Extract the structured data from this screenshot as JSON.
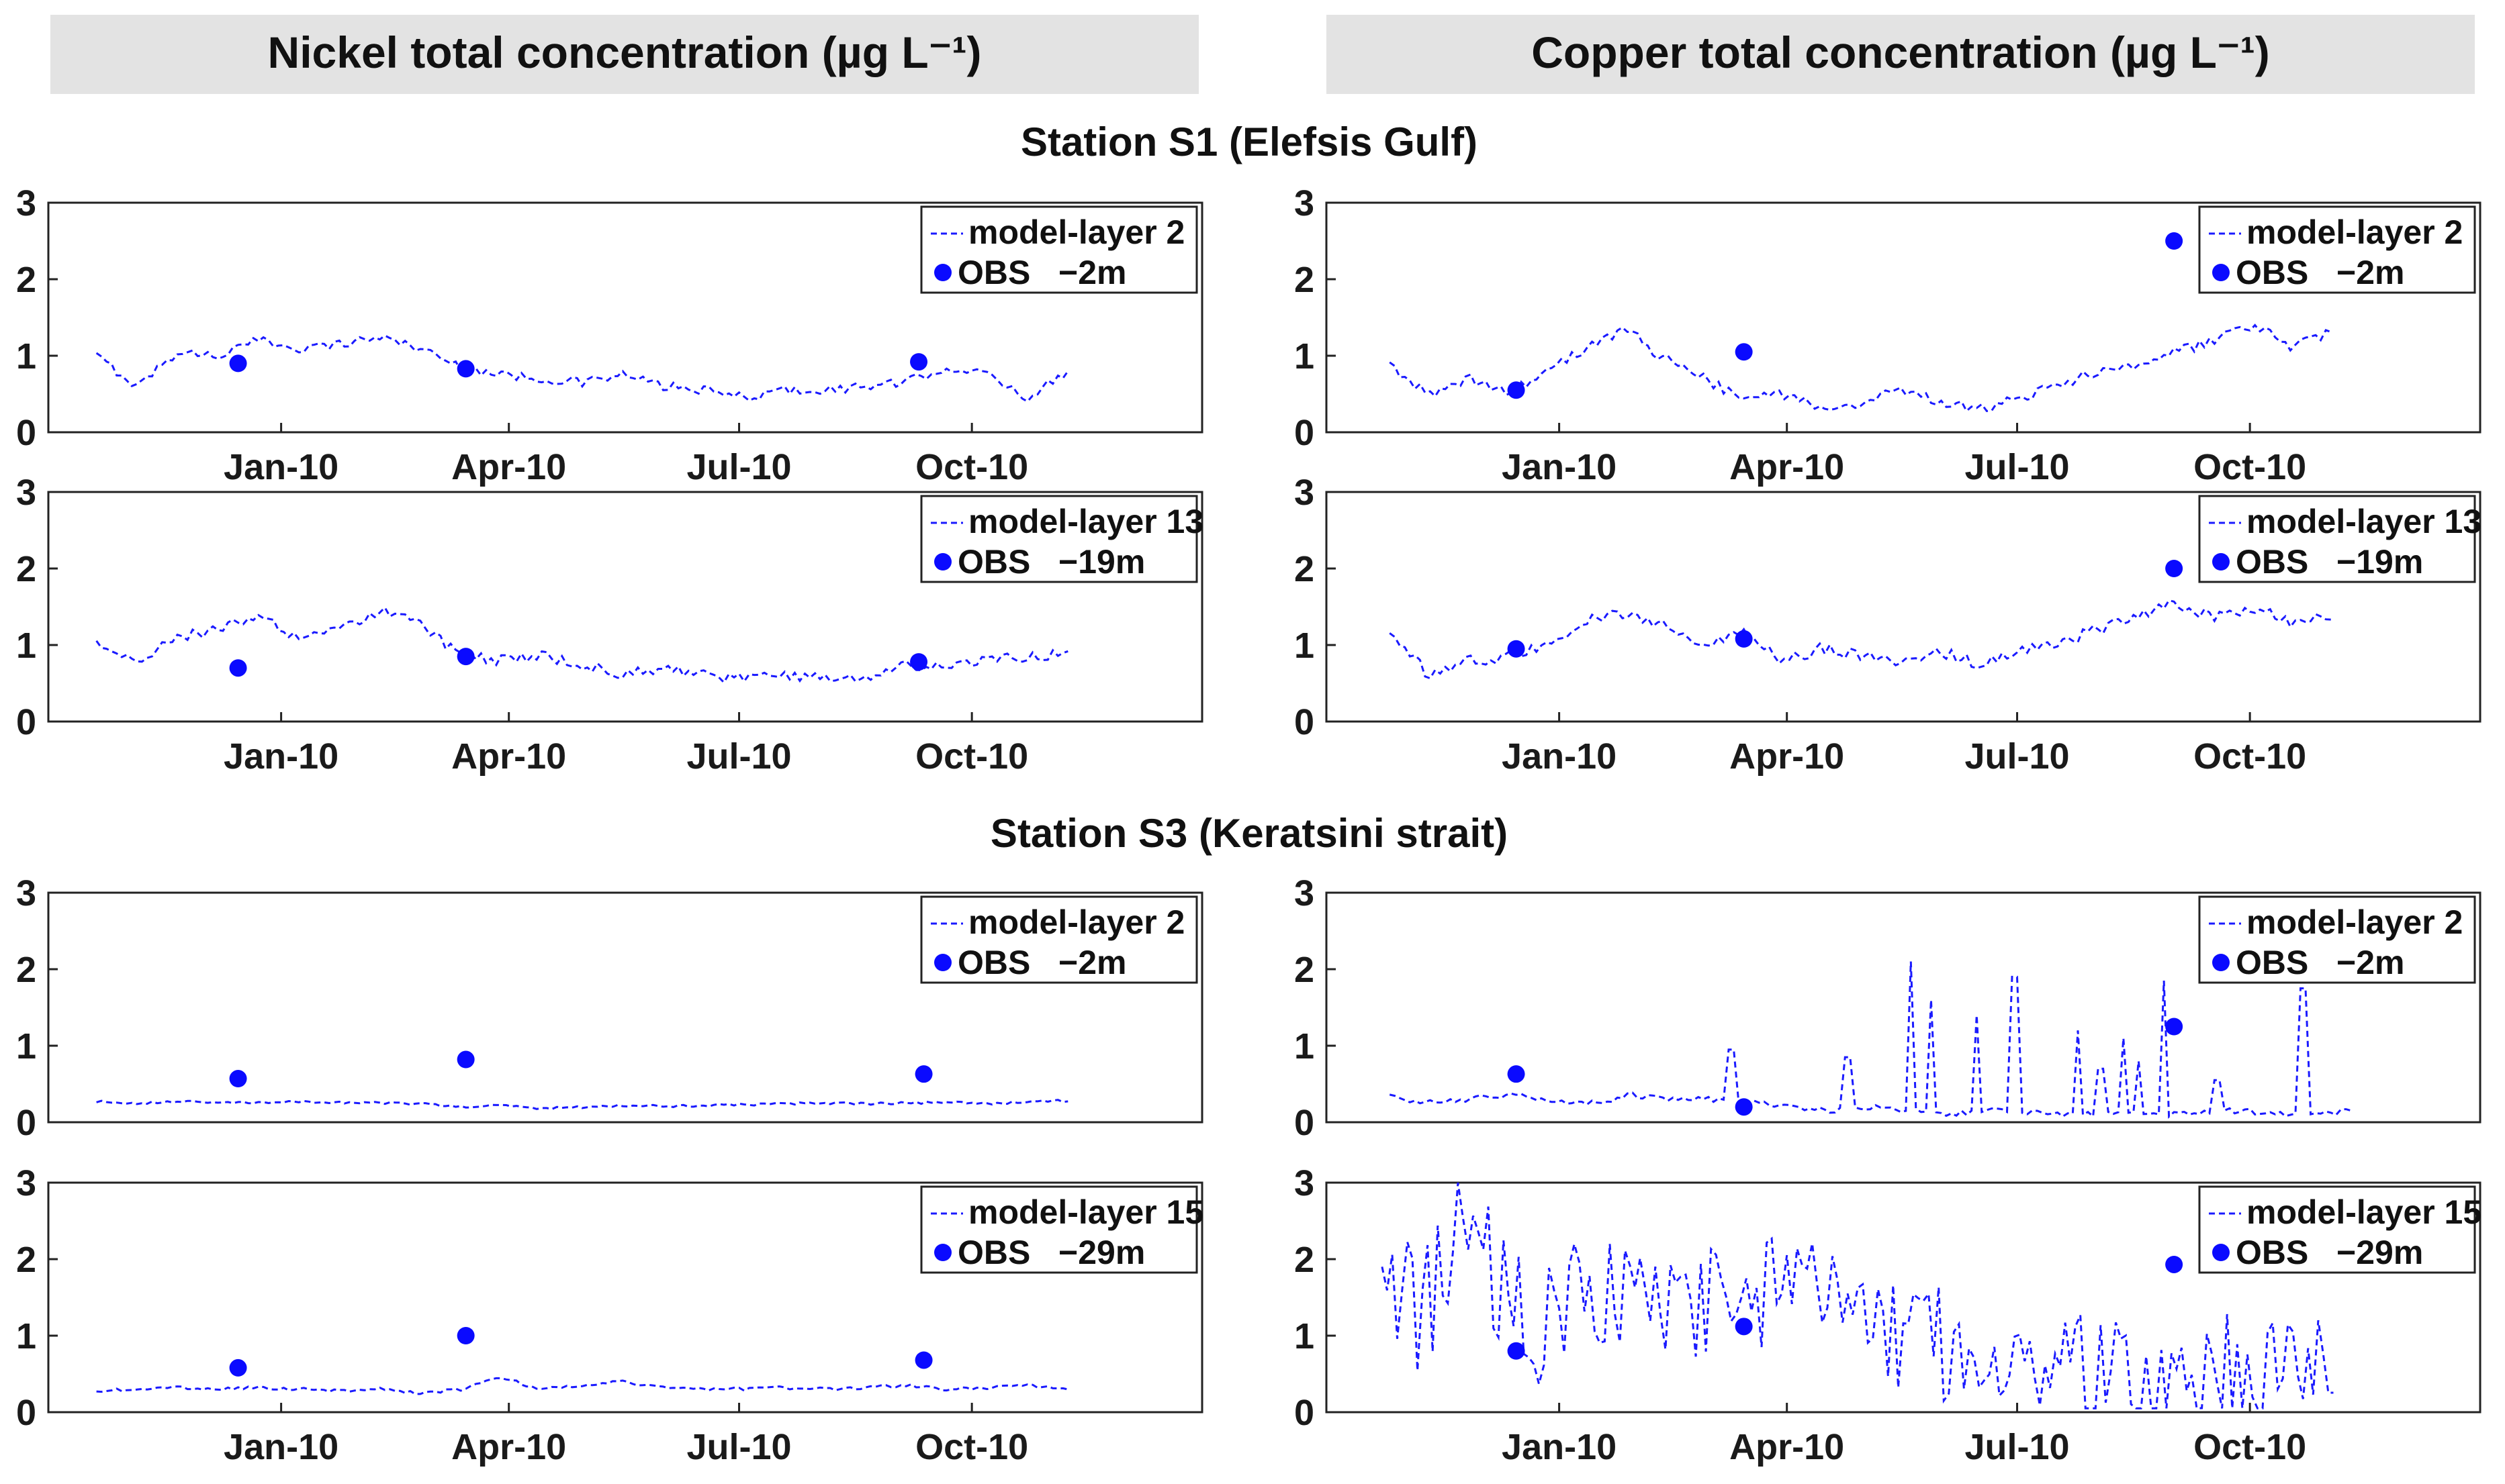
{
  "headers": {
    "nickel": "Nickel total concentration (µg L⁻¹)",
    "copper": "Copper total concentration (µg L⁻¹)"
  },
  "stations": {
    "s1": "Station S1 (Elefsis Gulf)",
    "s3": "Station S3 (Keratsini strait)"
  },
  "colors": {
    "series": "#1a1aff",
    "obs": "#0a0aff"
  },
  "chart_data": [
    {
      "id": "ni-s1-l2",
      "type": "line",
      "metal": "Nickel",
      "station": "S1",
      "ylim": [
        0,
        3
      ],
      "yticks": [
        "0",
        "1",
        "2",
        "3"
      ],
      "xlim": [
        "2009-10-01",
        "2010-12-31"
      ],
      "xticks": [
        {
          "label": "Jan-10",
          "date": "2010-01-01"
        },
        {
          "label": "Apr-10",
          "date": "2010-04-01"
        },
        {
          "label": "Jul-10",
          "date": "2010-07-01"
        },
        {
          "label": "Oct-10",
          "date": "2010-10-01"
        }
      ],
      "legend": {
        "model": "model-layer 2",
        "obs": "OBS   −2m",
        "position": "top-right"
      },
      "model": {
        "start": "2009-10-20",
        "end": "2010-11-08",
        "knots": [
          1.0,
          0.6,
          1.05,
          1.0,
          1.2,
          1.1,
          1.15,
          1.25,
          1.1,
          0.85,
          0.75,
          0.7,
          0.65,
          0.75,
          0.6,
          0.55,
          0.45,
          0.55,
          0.55,
          0.6,
          0.65,
          0.85,
          0.75,
          0.45,
          0.8
        ],
        "noise": 0.06
      },
      "obs": [
        {
          "date": "2009-12-15",
          "value": 0.9
        },
        {
          "date": "2010-03-15",
          "value": 0.83
        },
        {
          "date": "2010-09-10",
          "value": 0.92
        }
      ]
    },
    {
      "id": "ni-s1-l13",
      "type": "line",
      "metal": "Nickel",
      "station": "S1",
      "ylim": [
        0,
        3
      ],
      "yticks": [
        "0",
        "1",
        "2",
        "3"
      ],
      "xlim": [
        "2009-10-01",
        "2010-12-31"
      ],
      "xticks": [
        {
          "label": "Jan-10",
          "date": "2010-01-01"
        },
        {
          "label": "Apr-10",
          "date": "2010-04-01"
        },
        {
          "label": "Jul-10",
          "date": "2010-07-01"
        },
        {
          "label": "Oct-10",
          "date": "2010-10-01"
        }
      ],
      "legend": {
        "model": "model-layer 13",
        "obs": "OBS   −19m",
        "position": "top-right"
      },
      "model": {
        "start": "2009-10-20",
        "end": "2010-11-08",
        "knots": [
          1.0,
          0.8,
          1.1,
          1.2,
          1.4,
          1.05,
          1.2,
          1.45,
          1.3,
          0.85,
          0.8,
          0.85,
          0.75,
          0.6,
          0.7,
          0.6,
          0.55,
          0.6,
          0.6,
          0.55,
          0.75,
          0.7,
          0.8,
          0.85,
          0.9
        ],
        "noise": 0.07
      },
      "obs": [
        {
          "date": "2009-12-15",
          "value": 0.7
        },
        {
          "date": "2010-03-15",
          "value": 0.85
        },
        {
          "date": "2010-09-10",
          "value": 0.78
        }
      ]
    },
    {
      "id": "cu-s1-l2",
      "type": "line",
      "metal": "Copper",
      "station": "S1",
      "ylim": [
        0,
        3
      ],
      "yticks": [
        "0",
        "1",
        "2",
        "3"
      ],
      "xlim": [
        "2009-10-01",
        "2010-12-31"
      ],
      "xticks": [
        {
          "label": "Jan-10",
          "date": "2010-01-01"
        },
        {
          "label": "Apr-10",
          "date": "2010-04-01"
        },
        {
          "label": "Jul-10",
          "date": "2010-07-01"
        },
        {
          "label": "Oct-10",
          "date": "2010-10-01"
        }
      ],
      "legend": {
        "model": "model-layer 2",
        "obs": "OBS   −2m",
        "position": "top-right"
      },
      "model": {
        "start": "2009-10-26",
        "end": "2010-11-03",
        "knots": [
          0.85,
          0.5,
          0.7,
          0.5,
          0.8,
          1.1,
          1.35,
          0.95,
          0.7,
          0.4,
          0.5,
          0.3,
          0.4,
          0.55,
          0.4,
          0.3,
          0.45,
          0.6,
          0.8,
          0.9,
          1.05,
          1.2,
          1.4,
          1.1,
          1.35
        ],
        "noise": 0.07
      },
      "obs": [
        {
          "date": "2009-12-15",
          "value": 0.55
        },
        {
          "date": "2010-03-15",
          "value": 1.05
        },
        {
          "date": "2010-09-01",
          "value": 2.5
        }
      ]
    },
    {
      "id": "cu-s1-l13",
      "type": "line",
      "metal": "Copper",
      "station": "S1",
      "ylim": [
        0,
        3
      ],
      "yticks": [
        "0",
        "1",
        "2",
        "3"
      ],
      "xlim": [
        "2009-10-01",
        "2010-12-31"
      ],
      "xticks": [
        {
          "label": "Jan-10",
          "date": "2010-01-01"
        },
        {
          "label": "Apr-10",
          "date": "2010-04-01"
        },
        {
          "label": "Jul-10",
          "date": "2010-07-01"
        },
        {
          "label": "Oct-10",
          "date": "2010-10-01"
        }
      ],
      "legend": {
        "model": "model-layer 13",
        "obs": "OBS   −19m",
        "position": "top-right"
      },
      "model": {
        "start": "2009-10-26",
        "end": "2010-11-03",
        "knots": [
          1.2,
          0.6,
          0.8,
          0.85,
          1.0,
          1.35,
          1.4,
          1.25,
          1.0,
          1.15,
          0.8,
          0.95,
          0.85,
          0.8,
          0.9,
          0.75,
          0.95,
          1.0,
          1.2,
          1.35,
          1.55,
          1.35,
          1.45,
          1.3,
          1.4
        ],
        "noise": 0.08
      },
      "obs": [
        {
          "date": "2009-12-15",
          "value": 0.95
        },
        {
          "date": "2010-03-15",
          "value": 1.08
        },
        {
          "date": "2010-09-01",
          "value": 2.0
        }
      ]
    },
    {
      "id": "ni-s3-l2",
      "type": "line",
      "metal": "Nickel",
      "station": "S3",
      "ylim": [
        0,
        3
      ],
      "yticks": [
        "0",
        "1",
        "2",
        "3"
      ],
      "xlim": [
        "2009-10-01",
        "2010-12-31"
      ],
      "xticks": [],
      "legend": {
        "model": "model-layer 2",
        "obs": "OBS   −2m",
        "position": "top-right"
      },
      "model": {
        "start": "2009-10-20",
        "end": "2010-11-08",
        "knots": [
          0.27,
          0.25,
          0.27,
          0.26,
          0.25,
          0.27,
          0.26,
          0.25,
          0.24,
          0.2,
          0.22,
          0.18,
          0.2,
          0.22,
          0.21,
          0.22,
          0.23,
          0.24,
          0.25,
          0.24,
          0.25,
          0.26,
          0.24,
          0.27,
          0.28
        ],
        "noise": 0.015
      },
      "obs": [
        {
          "date": "2009-12-15",
          "value": 0.57
        },
        {
          "date": "2010-03-15",
          "value": 0.82
        },
        {
          "date": "2010-09-12",
          "value": 0.63
        }
      ]
    },
    {
      "id": "ni-s3-l15",
      "type": "line",
      "metal": "Nickel",
      "station": "S3",
      "ylim": [
        0,
        3
      ],
      "yticks": [
        "0",
        "1",
        "2",
        "3"
      ],
      "xlim": [
        "2009-10-01",
        "2010-12-31"
      ],
      "xticks": [
        {
          "label": "Jan-10",
          "date": "2010-01-01"
        },
        {
          "label": "Apr-10",
          "date": "2010-04-01"
        },
        {
          "label": "Jul-10",
          "date": "2010-07-01"
        },
        {
          "label": "Oct-10",
          "date": "2010-10-01"
        }
      ],
      "legend": {
        "model": "model-layer 15",
        "obs": "OBS   −29m",
        "position": "top-right"
      },
      "model": {
        "start": "2009-10-20",
        "end": "2010-11-08",
        "knots": [
          0.28,
          0.3,
          0.32,
          0.3,
          0.32,
          0.3,
          0.28,
          0.3,
          0.25,
          0.3,
          0.45,
          0.3,
          0.35,
          0.4,
          0.32,
          0.3,
          0.3,
          0.32,
          0.3,
          0.32,
          0.35,
          0.3,
          0.32,
          0.35,
          0.3
        ],
        "noise": 0.02
      },
      "obs": [
        {
          "date": "2009-12-15",
          "value": 0.58
        },
        {
          "date": "2010-03-15",
          "value": 1.0
        },
        {
          "date": "2010-09-12",
          "value": 0.68
        }
      ]
    },
    {
      "id": "cu-s3-l2",
      "type": "line",
      "metal": "Copper",
      "station": "S3",
      "ylim": [
        0,
        3
      ],
      "yticks": [
        "0",
        "1",
        "2",
        "3"
      ],
      "xlim": [
        "2009-10-01",
        "2010-12-31"
      ],
      "xticks": [],
      "legend": {
        "model": "model-layer 2",
        "obs": "OBS   −2m",
        "position": "top-right"
      },
      "model": {
        "start": "2009-10-26",
        "end": "2010-11-10",
        "knots": [
          0.35,
          0.25,
          0.3,
          0.35,
          0.3,
          0.25,
          0.35,
          0.3,
          0.3,
          0.25,
          0.2,
          0.15,
          0.2,
          0.15,
          0.12,
          0.15,
          0.12,
          0.1,
          0.12,
          0.1,
          0.12,
          0.15,
          0.12,
          0.1,
          0.15
        ],
        "noise": 0.04,
        "spikes": [
          {
            "date": "2010-03-10",
            "value": 0.95
          },
          {
            "date": "2010-04-25",
            "value": 0.85
          },
          {
            "date": "2010-05-20",
            "value": 2.1
          },
          {
            "date": "2010-05-28",
            "value": 1.6
          },
          {
            "date": "2010-06-15",
            "value": 1.4
          },
          {
            "date": "2010-06-30",
            "value": 1.9
          },
          {
            "date": "2010-07-25",
            "value": 1.2
          },
          {
            "date": "2010-08-03",
            "value": 0.7
          },
          {
            "date": "2010-08-12",
            "value": 1.1
          },
          {
            "date": "2010-08-18",
            "value": 0.8
          },
          {
            "date": "2010-08-28",
            "value": 1.85
          },
          {
            "date": "2010-09-18",
            "value": 0.55
          },
          {
            "date": "2010-10-22",
            "value": 1.75
          }
        ]
      },
      "obs": [
        {
          "date": "2009-12-15",
          "value": 0.63
        },
        {
          "date": "2010-03-15",
          "value": 0.2
        },
        {
          "date": "2010-09-01",
          "value": 1.25
        }
      ]
    },
    {
      "id": "cu-s3-l15",
      "type": "line",
      "metal": "Copper",
      "station": "S3",
      "ylim": [
        0,
        3
      ],
      "yticks": [
        "0",
        "1",
        "2",
        "3"
      ],
      "xlim": [
        "2009-10-01",
        "2010-12-31"
      ],
      "xticks": [
        {
          "label": "Jan-10",
          "date": "2010-01-01"
        },
        {
          "label": "Apr-10",
          "date": "2010-04-01"
        },
        {
          "label": "Jul-10",
          "date": "2010-07-01"
        },
        {
          "label": "Oct-10",
          "date": "2010-10-01"
        }
      ],
      "legend": {
        "model": "model-layer 15",
        "obs": "OBS   −29m",
        "position": "top-right"
      },
      "model": {
        "start": "2009-10-23",
        "end": "2010-11-03",
        "knots": [
          2.0,
          1.2,
          2.5,
          1.6,
          1.0,
          1.8,
          1.4,
          1.6,
          1.2,
          1.8,
          1.5,
          1.4,
          1.3,
          1.1,
          0.9,
          0.8,
          0.7,
          0.6,
          0.55,
          0.5,
          0.5,
          0.6,
          0.45,
          0.5,
          0.7
        ],
        "noise": 0.8
      },
      "obs": [
        {
          "date": "2009-12-15",
          "value": 0.8
        },
        {
          "date": "2010-03-15",
          "value": 1.12
        },
        {
          "date": "2010-09-01",
          "value": 1.93
        }
      ]
    }
  ]
}
